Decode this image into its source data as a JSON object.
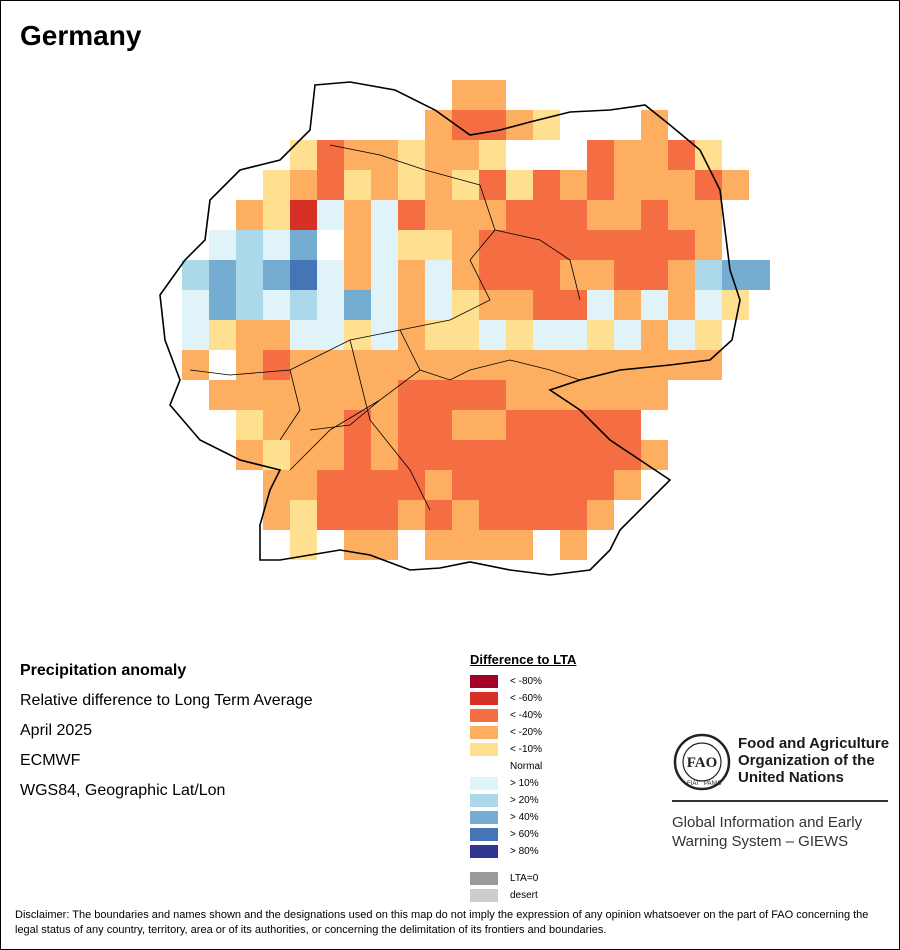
{
  "title": "Germany",
  "metadata": {
    "heading": "Precipitation anomaly",
    "line1": "Relative difference to Long Term Average",
    "line2": "April 2025",
    "line3": "ECMWF",
    "line4": "WGS84, Geographic Lat/Lon"
  },
  "legend": {
    "title": "Difference to LTA",
    "items": [
      {
        "label": "< -80%",
        "color": "#a50026"
      },
      {
        "label": "< -60%",
        "color": "#d73027"
      },
      {
        "label": "< -40%",
        "color": "#f46d43"
      },
      {
        "label": "< -20%",
        "color": "#fdae61"
      },
      {
        "label": "< -10%",
        "color": "#fee090"
      },
      {
        "label": "Normal",
        "color": "#ffffff"
      },
      {
        "label": "> 10%",
        "color": "#e0f3f8"
      },
      {
        "label": "> 20%",
        "color": "#abd9e9"
      },
      {
        "label": "> 40%",
        "color": "#74add1"
      },
      {
        "label": "> 60%",
        "color": "#4575b4"
      },
      {
        "label": "> 80%",
        "color": "#313695"
      }
    ],
    "extra": [
      {
        "label": "LTA=0",
        "color": "#999999"
      },
      {
        "label": "desert",
        "color": "#cccccc"
      }
    ]
  },
  "logo": {
    "org_line1": "Food and Agriculture",
    "org_line2": "Organization of the",
    "org_line3": "United Nations",
    "logo_text": "FAO",
    "motto_left": "FIAT",
    "motto_right": "PANIS",
    "system_line1": "Global Information and Early",
    "system_line2": "Warning System – GIEWS"
  },
  "disclaimer": "Disclaimer: The boundaries and names shown and the designations used on this map do not imply the expression of any opinion whatsoever on the part of FAO concerning the legal status of any country, territory, area or of its authorities, or concerning the delimitation of its frontiers and boundaries.",
  "map_grid": [
    "...........22..........",
    "..........23321...2....",
    ".....13221221...32231..",
    "....123121213132322232.",
    "...214-2-322233322322..",
    "..-7-8.2-112333333332..",
    ".78789-2-2-233322332788",
    ".-87-7-8-2-12233-2-2-1.",
    ".-122--1-211-1--1-2-1..",
    ".2.232222222222222222..",
    "..22222223333222222....",
    "...122232332233333.....",
    "...2122323333333332....",
    "....22333323333332.....",
    "....2133323233332......",
    ".....1.22.2222.2......."
  ]
}
